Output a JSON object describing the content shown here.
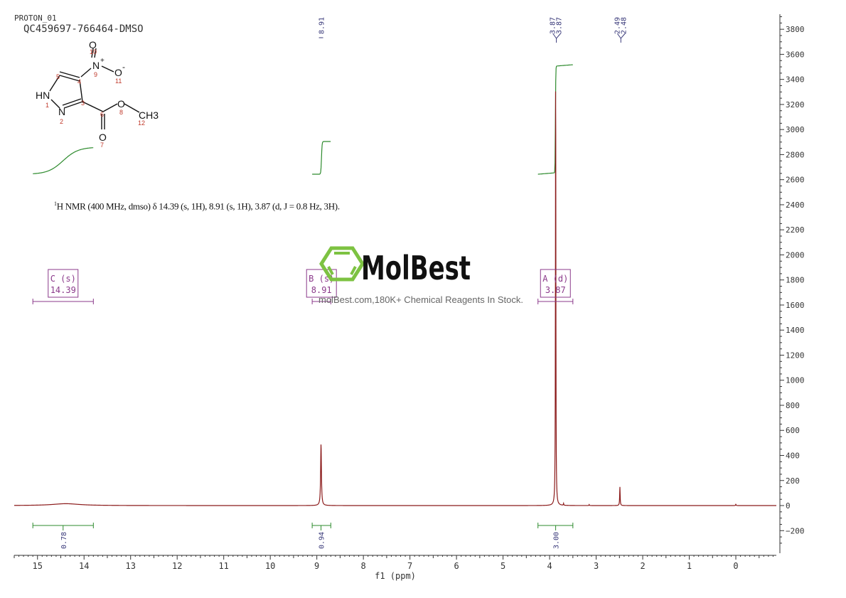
{
  "header": {
    "experiment": "PROTON_01",
    "sample": "QC459697-766464-DMSO"
  },
  "structure": {
    "atoms": [
      {
        "label": "HN",
        "num": "1"
      },
      {
        "label": "N",
        "num": "2"
      },
      {
        "label": "",
        "num": "3"
      },
      {
        "label": "",
        "num": "4"
      },
      {
        "label": "",
        "num": "5"
      },
      {
        "label": "",
        "num": "6"
      },
      {
        "label": "O",
        "num": "7"
      },
      {
        "label": "O",
        "num": "8"
      },
      {
        "label": "N",
        "num": "9",
        "charge": "+"
      },
      {
        "label": "O",
        "num": "10"
      },
      {
        "label": "O",
        "num": "11",
        "charge": "-"
      },
      {
        "label": "CH3",
        "num": "12"
      }
    ]
  },
  "description": {
    "sup": "1",
    "text": "H NMR (400 MHz, dmso) δ 14.39 (s, 1H), 8.91 (s, 1H), 3.87 (d, J = 0.8 Hz, 3H)."
  },
  "watermark": {
    "brand": "MolBest",
    "tagline": "molBest.com,180K+ Chemical Reagents In Stock.",
    "color": "#7dc242"
  },
  "chart_data": {
    "type": "line",
    "xlabel": "f1 (ppm)",
    "xlim": [
      15.5,
      -0.87
    ],
    "ylim": [
      -380,
      3920
    ],
    "x_ticks": [
      15,
      14,
      13,
      12,
      11,
      10,
      9,
      8,
      7,
      6,
      5,
      4,
      3,
      2,
      1,
      0
    ],
    "y_ticks": [
      -200,
      0,
      200,
      400,
      600,
      800,
      1000,
      1200,
      1400,
      1600,
      1800,
      2000,
      2200,
      2400,
      2600,
      2800,
      3000,
      3200,
      3400,
      3600,
      3800
    ],
    "grid": false,
    "colors": {
      "spectrum": "#8b1a1a",
      "integral": "#2e8b2e",
      "annotation": "#8b3a8b",
      "peak_label": "#3a3a7a",
      "axis": "#333333"
    },
    "peaks": [
      {
        "ppm": 14.39,
        "height": 15,
        "width": 0.35
      },
      {
        "ppm": 8.91,
        "height": 490,
        "width": 0.01
      },
      {
        "ppm": 3.87,
        "height": 3600,
        "width": 0.005
      },
      {
        "ppm": 3.7,
        "height": 15,
        "width": 0.005
      },
      {
        "ppm": 3.15,
        "height": 8,
        "width": 0.005
      },
      {
        "ppm": 2.49,
        "height": 150,
        "width": 0.006
      },
      {
        "ppm": 0.0,
        "height": 10,
        "width": 0.006
      }
    ],
    "peak_labels": [
      {
        "values": [
          "8.91"
        ],
        "ppm": 8.91
      },
      {
        "values": [
          "3.87",
          "3.87"
        ],
        "ppm": 3.87
      },
      {
        "values": [
          "2.49",
          "2.48"
        ],
        "ppm": 2.485
      }
    ],
    "multiplets": [
      {
        "letter": "C (s)",
        "shift": "14.39",
        "range": [
          15.1,
          13.8
        ]
      },
      {
        "letter": "B (s)",
        "shift": "8.91",
        "range": [
          9.1,
          8.7
        ]
      },
      {
        "letter": "A (d)",
        "shift": "3.87",
        "range": [
          4.25,
          3.5
        ]
      }
    ],
    "integrals": [
      {
        "value": "0.78",
        "range": [
          15.1,
          13.8
        ],
        "center": 14.45
      },
      {
        "value": "0.94",
        "range": [
          9.1,
          8.7
        ],
        "center": 8.91
      },
      {
        "value": "3.00",
        "range": [
          4.25,
          3.5
        ],
        "center": 3.87
      }
    ]
  }
}
